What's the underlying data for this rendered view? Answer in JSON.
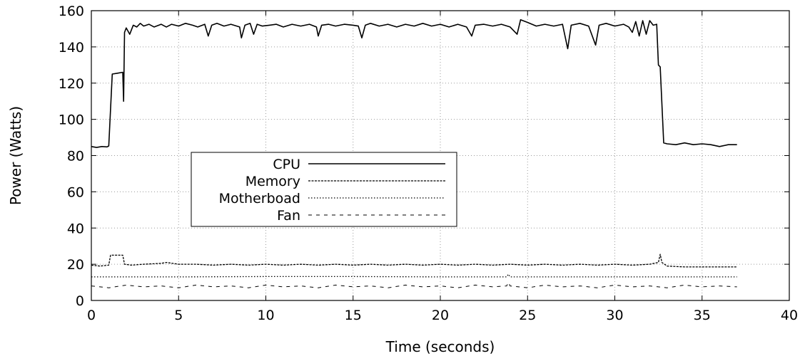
{
  "chart_data": {
    "type": "line",
    "xlabel": "Time (seconds)",
    "ylabel": "Power (Watts)",
    "xlim": [
      0,
      40
    ],
    "ylim": [
      0,
      160
    ],
    "xticks": [
      0,
      5,
      10,
      15,
      20,
      25,
      30,
      35,
      40
    ],
    "yticks": [
      0,
      20,
      40,
      60,
      80,
      100,
      120,
      140,
      160
    ],
    "grid": true,
    "legend_position": "center-left",
    "series": [
      {
        "name": "CPU",
        "style": "solid",
        "color": "#000000",
        "points": [
          [
            0,
            85
          ],
          [
            0.3,
            84.5
          ],
          [
            0.6,
            85
          ],
          [
            0.9,
            84.8
          ],
          [
            1.0,
            85.3
          ],
          [
            1.2,
            125
          ],
          [
            1.5,
            125.5
          ],
          [
            1.8,
            126
          ],
          [
            1.85,
            110
          ],
          [
            1.9,
            148
          ],
          [
            2.0,
            150.5
          ],
          [
            2.2,
            147
          ],
          [
            2.4,
            152
          ],
          [
            2.6,
            151
          ],
          [
            2.8,
            153
          ],
          [
            3.0,
            151.5
          ],
          [
            3.3,
            152.5
          ],
          [
            3.6,
            151
          ],
          [
            4.0,
            152.5
          ],
          [
            4.3,
            151
          ],
          [
            4.6,
            152.5
          ],
          [
            5.0,
            151.5
          ],
          [
            5.4,
            153
          ],
          [
            5.8,
            152
          ],
          [
            6.1,
            151
          ],
          [
            6.5,
            152.5
          ],
          [
            6.7,
            146
          ],
          [
            6.9,
            152
          ],
          [
            7.2,
            153
          ],
          [
            7.6,
            151.5
          ],
          [
            8.0,
            152.5
          ],
          [
            8.5,
            151
          ],
          [
            8.6,
            145
          ],
          [
            8.8,
            152
          ],
          [
            9.1,
            153
          ],
          [
            9.3,
            147
          ],
          [
            9.5,
            152.5
          ],
          [
            9.8,
            151.5
          ],
          [
            10.2,
            152
          ],
          [
            10.6,
            152.5
          ],
          [
            11.0,
            151
          ],
          [
            11.5,
            152.5
          ],
          [
            12.0,
            151.5
          ],
          [
            12.5,
            152.5
          ],
          [
            12.9,
            151
          ],
          [
            13.0,
            146
          ],
          [
            13.2,
            152
          ],
          [
            13.6,
            152.5
          ],
          [
            14.0,
            151.5
          ],
          [
            14.5,
            152.5
          ],
          [
            15.0,
            152
          ],
          [
            15.3,
            151.5
          ],
          [
            15.5,
            145
          ],
          [
            15.7,
            152
          ],
          [
            16.0,
            153
          ],
          [
            16.5,
            151.5
          ],
          [
            17.0,
            152.5
          ],
          [
            17.5,
            151
          ],
          [
            18.0,
            152.5
          ],
          [
            18.5,
            151.5
          ],
          [
            19.0,
            153
          ],
          [
            19.5,
            151.5
          ],
          [
            20.0,
            152.5
          ],
          [
            20.5,
            151
          ],
          [
            21.0,
            152.5
          ],
          [
            21.5,
            151
          ],
          [
            21.8,
            146
          ],
          [
            22.0,
            152
          ],
          [
            22.5,
            152.5
          ],
          [
            23.0,
            151.5
          ],
          [
            23.5,
            152.5
          ],
          [
            24.0,
            151
          ],
          [
            24.4,
            147
          ],
          [
            24.6,
            155
          ],
          [
            25.0,
            153.5
          ],
          [
            25.5,
            151.5
          ],
          [
            26.0,
            152.5
          ],
          [
            26.5,
            151.5
          ],
          [
            27.0,
            152.5
          ],
          [
            27.3,
            139
          ],
          [
            27.5,
            152
          ],
          [
            28.0,
            153
          ],
          [
            28.5,
            151.5
          ],
          [
            28.9,
            141
          ],
          [
            29.1,
            152
          ],
          [
            29.5,
            153
          ],
          [
            30.0,
            151.5
          ],
          [
            30.5,
            152.5
          ],
          [
            30.8,
            151
          ],
          [
            31.0,
            148
          ],
          [
            31.2,
            154
          ],
          [
            31.4,
            146
          ],
          [
            31.6,
            154.5
          ],
          [
            31.8,
            147
          ],
          [
            32.0,
            154.5
          ],
          [
            32.2,
            152
          ],
          [
            32.4,
            152.5
          ],
          [
            32.5,
            130
          ],
          [
            32.6,
            129
          ],
          [
            32.8,
            87
          ],
          [
            33.0,
            86.5
          ],
          [
            33.5,
            86
          ],
          [
            34.0,
            87
          ],
          [
            34.5,
            86
          ],
          [
            35.0,
            86.5
          ],
          [
            35.5,
            86
          ],
          [
            36.0,
            85
          ],
          [
            36.5,
            86
          ],
          [
            37.0,
            86
          ]
        ]
      },
      {
        "name": "Memory",
        "style": "dashed",
        "color": "#000000",
        "points": [
          [
            0,
            19.5
          ],
          [
            0.5,
            19
          ],
          [
            1.0,
            19.5
          ],
          [
            1.1,
            25
          ],
          [
            1.5,
            25
          ],
          [
            1.8,
            25
          ],
          [
            1.9,
            20
          ],
          [
            2.3,
            19.5
          ],
          [
            3.0,
            20
          ],
          [
            4.0,
            20.5
          ],
          [
            4.3,
            21
          ],
          [
            5.0,
            20
          ],
          [
            6.0,
            20
          ],
          [
            7.0,
            19.5
          ],
          [
            8.0,
            20
          ],
          [
            9.0,
            19.5
          ],
          [
            10.0,
            20
          ],
          [
            11.0,
            19.5
          ],
          [
            12.0,
            20
          ],
          [
            13.0,
            19.5
          ],
          [
            14.0,
            20
          ],
          [
            15.0,
            19.5
          ],
          [
            16.0,
            20
          ],
          [
            17.0,
            19.5
          ],
          [
            18.0,
            20
          ],
          [
            19.0,
            19.5
          ],
          [
            20.0,
            20
          ],
          [
            21.0,
            19.5
          ],
          [
            22.0,
            20
          ],
          [
            23.0,
            19.5
          ],
          [
            24.0,
            20
          ],
          [
            25.0,
            19.5
          ],
          [
            26.0,
            20
          ],
          [
            27.0,
            19.5
          ],
          [
            28.0,
            20
          ],
          [
            29.0,
            19.5
          ],
          [
            30.0,
            20
          ],
          [
            31.0,
            19.5
          ],
          [
            32.0,
            20
          ],
          [
            32.5,
            21
          ],
          [
            32.6,
            25.5
          ],
          [
            32.7,
            21
          ],
          [
            33.0,
            19
          ],
          [
            34.0,
            18.5
          ],
          [
            35.0,
            18.5
          ],
          [
            36.0,
            18.5
          ],
          [
            37.0,
            18.5
          ]
        ]
      },
      {
        "name": "Motherboad",
        "style": "dotted",
        "color": "#000000",
        "points": [
          [
            0,
            13
          ],
          [
            5,
            13
          ],
          [
            10,
            13.2
          ],
          [
            15,
            13.2
          ],
          [
            20,
            13
          ],
          [
            23.8,
            13
          ],
          [
            23.9,
            14.5
          ],
          [
            24.0,
            13
          ],
          [
            25,
            13
          ],
          [
            30,
            13
          ],
          [
            32.5,
            13
          ],
          [
            37,
            13
          ]
        ]
      },
      {
        "name": "Fan",
        "style": "sparse-dashed",
        "color": "#000000",
        "points": [
          [
            0,
            8
          ],
          [
            1,
            7
          ],
          [
            2,
            8.5
          ],
          [
            3,
            7.5
          ],
          [
            4,
            8
          ],
          [
            5,
            7
          ],
          [
            6,
            8.5
          ],
          [
            7,
            7.5
          ],
          [
            8,
            8
          ],
          [
            9,
            7
          ],
          [
            10,
            8.5
          ],
          [
            11,
            7.5
          ],
          [
            12,
            8
          ],
          [
            13,
            7
          ],
          [
            14,
            8.5
          ],
          [
            15,
            7.5
          ],
          [
            16,
            8
          ],
          [
            17,
            7
          ],
          [
            18,
            8.5
          ],
          [
            19,
            7.5
          ],
          [
            20,
            8
          ],
          [
            21,
            7
          ],
          [
            22,
            8.5
          ],
          [
            23,
            7.5
          ],
          [
            23.8,
            8
          ],
          [
            23.9,
            10
          ],
          [
            24.0,
            8
          ],
          [
            25,
            7
          ],
          [
            26,
            8.5
          ],
          [
            27,
            7.5
          ],
          [
            28,
            8
          ],
          [
            29,
            7
          ],
          [
            30,
            8.5
          ],
          [
            31,
            7.5
          ],
          [
            32,
            8
          ],
          [
            33,
            7
          ],
          [
            34,
            8.5
          ],
          [
            35,
            7.5
          ],
          [
            36,
            8
          ],
          [
            37,
            7.5
          ]
        ]
      }
    ]
  }
}
